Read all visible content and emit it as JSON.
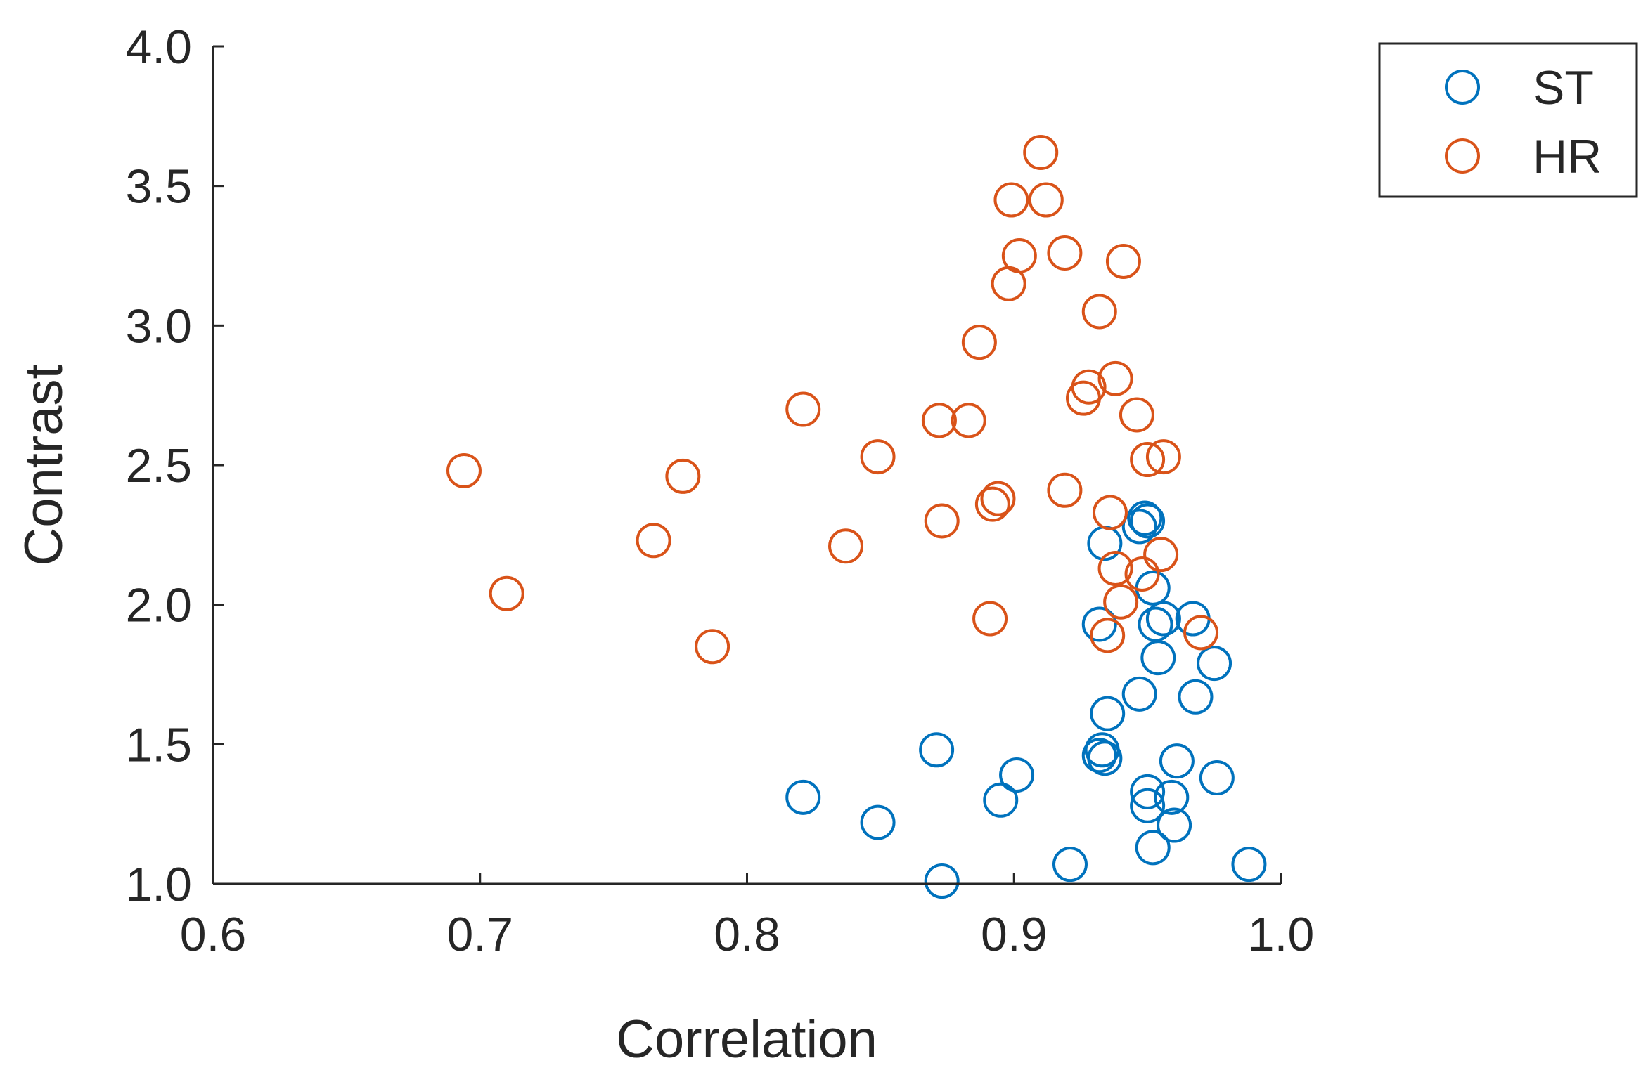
{
  "chart_data": {
    "type": "scatter",
    "title": "",
    "xlabel": "Correlation",
    "ylabel": "Contrast",
    "xlim": [
      0.6,
      1.0
    ],
    "ylim": [
      1.0,
      4.0
    ],
    "xticks": [
      0.6,
      0.7,
      0.8,
      0.9,
      1.0
    ],
    "yticks": [
      1.0,
      1.5,
      2.0,
      2.5,
      3.0,
      3.5,
      4.0
    ],
    "xtick_labels": [
      "0.6",
      "0.7",
      "0.8",
      "0.9",
      "1.0"
    ],
    "ytick_labels": [
      "1.0",
      "1.5",
      "2.0",
      "2.5",
      "3.0",
      "3.5",
      "4.0"
    ],
    "legend_position": "outside-top-right",
    "series": [
      {
        "name": "ST",
        "color": "#0072BD",
        "marker": "circle-open",
        "points": [
          [
            0.821,
            1.31
          ],
          [
            0.849,
            1.22
          ],
          [
            0.871,
            1.48
          ],
          [
            0.873,
            1.01
          ],
          [
            0.895,
            1.3
          ],
          [
            0.901,
            1.39
          ],
          [
            0.921,
            1.07
          ],
          [
            0.932,
            1.93
          ],
          [
            0.932,
            1.46
          ],
          [
            0.933,
            1.48
          ],
          [
            0.934,
            1.45
          ],
          [
            0.935,
            1.61
          ],
          [
            0.934,
            2.22
          ],
          [
            0.947,
            1.68
          ],
          [
            0.947,
            2.28
          ],
          [
            0.949,
            2.31
          ],
          [
            0.95,
            2.3
          ],
          [
            0.952,
            2.06
          ],
          [
            0.95,
            1.33
          ],
          [
            0.95,
            1.28
          ],
          [
            0.952,
            1.13
          ],
          [
            0.953,
            1.93
          ],
          [
            0.954,
            1.81
          ],
          [
            0.956,
            1.95
          ],
          [
            0.959,
            1.31
          ],
          [
            0.96,
            1.21
          ],
          [
            0.961,
            1.44
          ],
          [
            0.967,
            1.95
          ],
          [
            0.968,
            1.67
          ],
          [
            0.975,
            1.79
          ],
          [
            0.976,
            1.38
          ],
          [
            0.988,
            1.07
          ]
        ]
      },
      {
        "name": "HR",
        "color": "#D95319",
        "marker": "circle-open",
        "points": [
          [
            0.694,
            2.48
          ],
          [
            0.71,
            2.04
          ],
          [
            0.765,
            2.23
          ],
          [
            0.776,
            2.46
          ],
          [
            0.787,
            1.85
          ],
          [
            0.821,
            2.7
          ],
          [
            0.837,
            2.21
          ],
          [
            0.849,
            2.53
          ],
          [
            0.872,
            2.66
          ],
          [
            0.873,
            2.3
          ],
          [
            0.883,
            2.66
          ],
          [
            0.887,
            2.94
          ],
          [
            0.891,
            1.95
          ],
          [
            0.892,
            2.36
          ],
          [
            0.894,
            2.38
          ],
          [
            0.898,
            3.15
          ],
          [
            0.899,
            3.45
          ],
          [
            0.902,
            3.25
          ],
          [
            0.91,
            3.62
          ],
          [
            0.912,
            3.45
          ],
          [
            0.919,
            3.26
          ],
          [
            0.919,
            2.41
          ],
          [
            0.926,
            2.74
          ],
          [
            0.928,
            2.78
          ],
          [
            0.932,
            3.05
          ],
          [
            0.935,
            1.89
          ],
          [
            0.936,
            2.33
          ],
          [
            0.938,
            2.81
          ],
          [
            0.938,
            2.13
          ],
          [
            0.94,
            2.01
          ],
          [
            0.941,
            3.23
          ],
          [
            0.946,
            2.68
          ],
          [
            0.948,
            2.11
          ],
          [
            0.95,
            2.52
          ],
          [
            0.956,
            2.53
          ],
          [
            0.955,
            2.18
          ],
          [
            0.97,
            1.9
          ]
        ]
      }
    ]
  }
}
